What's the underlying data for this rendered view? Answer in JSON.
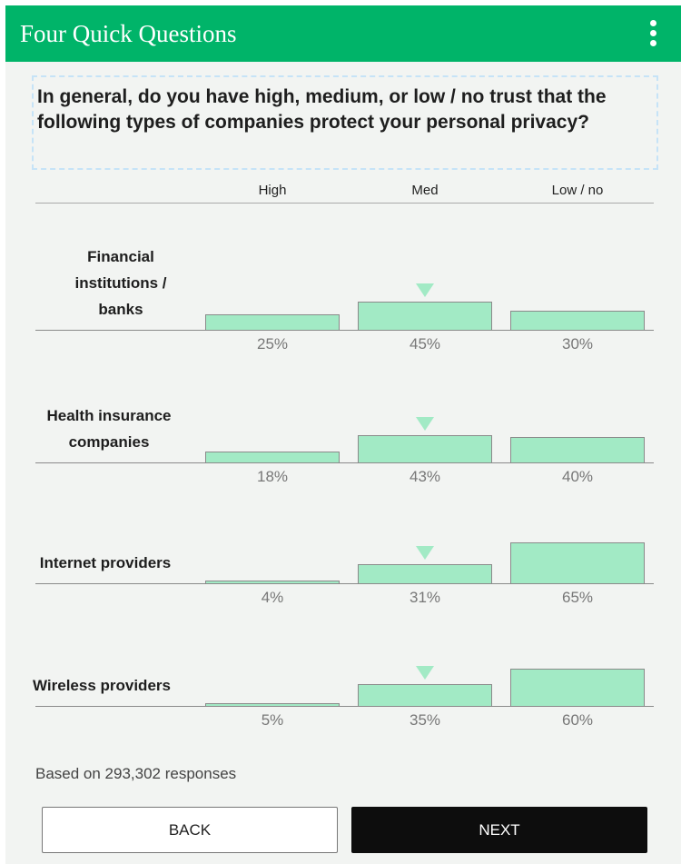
{
  "app": {
    "title": "Four Quick Questions",
    "menu_icon": "more-vertical-icon"
  },
  "question": {
    "text": "In general, do you have high, medium, or low / no trust that the following types of companies protect your personal privacy?"
  },
  "columns": [
    "High",
    "Med",
    "Low / no"
  ],
  "rows": [
    {
      "label_lines": [
        "Financial",
        "institutions /",
        "banks"
      ],
      "values": [
        "25%",
        "45%",
        "30%"
      ],
      "shares": [
        25,
        45,
        30
      ],
      "marked": 1
    },
    {
      "label_lines": [
        "Health insurance",
        "companies"
      ],
      "values": [
        "18%",
        "43%",
        "40%"
      ],
      "shares": [
        18,
        43,
        40
      ],
      "marked": 1
    },
    {
      "label_lines": [
        "Internet providers"
      ],
      "values": [
        "4%",
        "31%",
        "65%"
      ],
      "shares": [
        4,
        31,
        65
      ],
      "marked": 1
    },
    {
      "label_lines": [
        "Wireless providers"
      ],
      "values": [
        "5%",
        "35%",
        "60%"
      ],
      "shares": [
        5,
        35,
        60
      ],
      "marked": 1
    }
  ],
  "footnote": "Based on 293,302 responses",
  "buttons": {
    "back": "BACK",
    "next": "NEXT"
  },
  "colors": {
    "header_bg": "#00b469",
    "bar_fill": "#a2eac5",
    "next_bg": "#0d0d0d"
  }
}
